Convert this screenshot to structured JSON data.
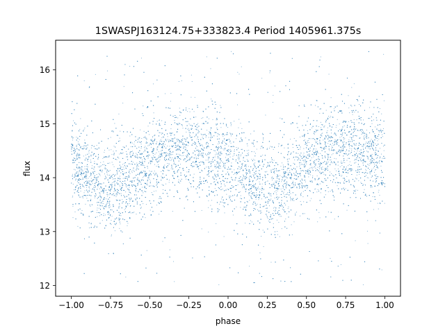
{
  "chart_data": {
    "type": "scatter",
    "title": "1SWASPJ163124.75+333823.4 Period 1405961.375s",
    "xlabel": "phase",
    "ylabel": "flux",
    "xlim": [
      -1.1,
      1.1
    ],
    "ylim": [
      11.8,
      16.55
    ],
    "xticks": [
      -1.0,
      -0.75,
      -0.5,
      -0.25,
      0.0,
      0.25,
      0.5,
      0.75,
      1.0
    ],
    "xtick_labels": [
      "−1.00",
      "−0.75",
      "−0.50",
      "−0.25",
      "0.00",
      "0.25",
      "0.50",
      "0.75",
      "1.00"
    ],
    "yticks": [
      12,
      13,
      14,
      15,
      16
    ],
    "ytick_labels": [
      "12",
      "13",
      "14",
      "15",
      "16"
    ],
    "grid": false,
    "legend": "none",
    "point_color": "#1f77b4",
    "series": [
      {
        "trend_x": [
          -1.0,
          -0.95,
          -0.9,
          -0.85,
          -0.8,
          -0.75,
          -0.7,
          -0.65,
          -0.6,
          -0.55,
          -0.5,
          -0.45,
          -0.4,
          -0.35,
          -0.3,
          -0.25,
          -0.2,
          -0.15,
          -0.1,
          -0.05,
          0.0,
          0.05,
          0.1,
          0.15,
          0.2,
          0.25,
          0.3,
          0.35,
          0.4,
          0.45,
          0.5,
          0.55,
          0.6,
          0.65,
          0.7,
          0.75,
          0.8,
          0.85,
          0.9,
          0.95,
          1.0
        ],
        "trend_y": [
          14.25,
          14.15,
          14.05,
          13.95,
          13.85,
          13.8,
          13.85,
          13.95,
          14.05,
          14.15,
          14.25,
          14.35,
          14.42,
          14.48,
          14.5,
          14.52,
          14.5,
          14.45,
          14.38,
          14.3,
          14.25,
          14.15,
          14.05,
          13.95,
          13.85,
          13.8,
          13.85,
          13.95,
          14.05,
          14.15,
          14.25,
          14.35,
          14.42,
          14.48,
          14.5,
          14.52,
          14.5,
          14.45,
          14.38,
          14.3,
          14.25
        ],
        "scatter_sigma": 0.42,
        "outlier_range": [
          12.0,
          16.35
        ],
        "x_range": [
          -1.0,
          1.0
        ]
      }
    ]
  }
}
